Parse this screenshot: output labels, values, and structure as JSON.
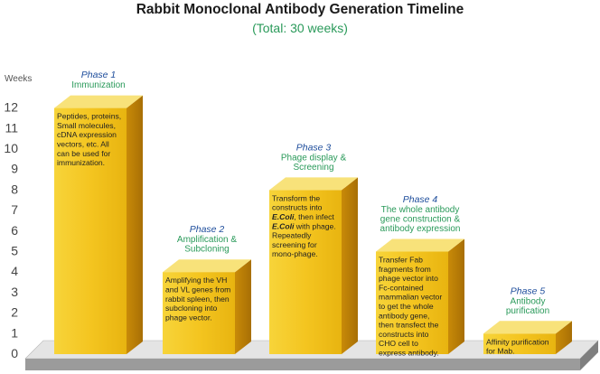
{
  "title": "Rabbit Monoclonal Antibody Generation Timeline",
  "subtitle": "(Total: 30 weeks)",
  "chart_data": {
    "type": "bar",
    "title": "Rabbit Monoclonal Antibody Generation Timeline",
    "subtitle": "(Total: 30 weeks)",
    "ylabel": "Weeks",
    "xlabel": "",
    "ylim": [
      0,
      12
    ],
    "yticks": [
      0,
      1,
      2,
      3,
      4,
      5,
      6,
      7,
      8,
      9,
      10,
      11,
      12
    ],
    "categories": [
      "Phase 1",
      "Phase 2",
      "Phase 3",
      "Phase 4",
      "Phase 5"
    ],
    "values": [
      12,
      4,
      8,
      5,
      1
    ],
    "phases": [
      {
        "label": "Phase 1",
        "subtitle": [
          "Immunization"
        ],
        "value": 12,
        "description": [
          "Peptides, proteins,",
          "Small molecules,",
          "cDNA expression",
          "vectors, etc. All",
          "can be used for",
          "immunization."
        ]
      },
      {
        "label": "Phase 2",
        "subtitle": [
          "Amplification &",
          "Subcloning"
        ],
        "value": 4,
        "description": [
          "Amplifying the VH",
          "and VL genes from",
          "rabbit spleen, then",
          "subcloning into",
          "phage vector."
        ]
      },
      {
        "label": "Phase 3",
        "subtitle": [
          "Phage display &",
          "Screening"
        ],
        "value": 8,
        "description": [
          "Transform the",
          "constructs into",
          "E.Coli, then infect",
          "E.Coli with phage.",
          "Repeatedly",
          "screening for",
          "mono-phage."
        ]
      },
      {
        "label": "Phase 4",
        "subtitle": [
          "The whole antibody",
          "gene construction &",
          "antibody expression"
        ],
        "value": 5,
        "description": [
          "Transfer Fab",
          "fragments from",
          "phage vector into",
          "Fc-contained",
          "mammalian vector",
          "to get the whole",
          "antibody gene,",
          "then transfect the",
          "constructs into",
          "CHO cell to",
          "express antibody."
        ]
      },
      {
        "label": "Phase 5",
        "subtitle": [
          "Antibody",
          "purification"
        ],
        "value": 1,
        "description": [
          "Affinity purification",
          "for Mab."
        ]
      }
    ],
    "colors": {
      "bar_front": "#f2c21b",
      "bar_side": "#c98f0c",
      "bar_top": "#f8e27a",
      "platform": "#c8c8c8",
      "phase_title": "#1f4e9c",
      "phase_sub": "#2a9a5a"
    }
  }
}
